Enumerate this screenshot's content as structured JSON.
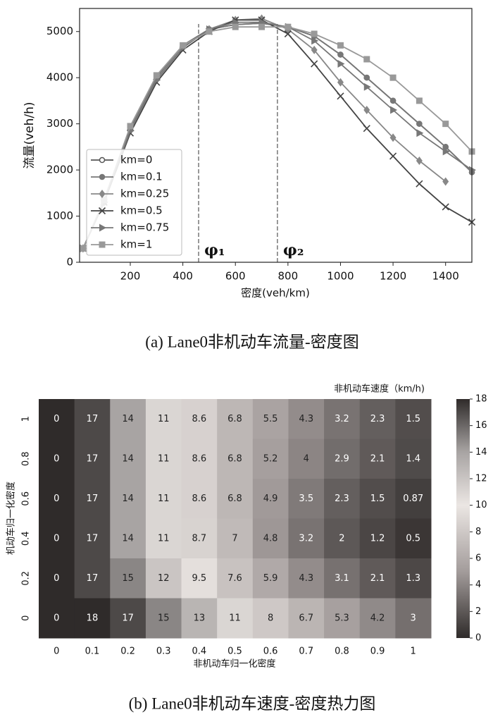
{
  "chart_data": [
    {
      "type": "line",
      "caption": "(a) Lane0非机动车流量-密度图",
      "xlabel": "密度(veh/km)",
      "ylabel": "流量(veh/h)",
      "x": [
        20,
        100,
        200,
        300,
        400,
        500,
        600,
        700,
        800,
        900,
        1000,
        1100,
        1200,
        1300,
        1400,
        1500
      ],
      "series": [
        {
          "name": "km=0",
          "color": "#555555",
          "marker": "circle-open",
          "values": [
            300,
            1300,
            2900,
            4000,
            4700,
            5050,
            5150,
            5180,
            5100,
            4900,
            4500,
            4000,
            3500,
            3000,
            2500,
            1950
          ]
        },
        {
          "name": "km=0.1",
          "color": "#777777",
          "marker": "circle",
          "values": [
            300,
            1300,
            2900,
            4000,
            4700,
            5050,
            5150,
            5180,
            5100,
            4900,
            4500,
            4000,
            3500,
            3000,
            2500,
            1950
          ]
        },
        {
          "name": "km=0.25",
          "color": "#888888",
          "marker": "diamond",
          "values": [
            300,
            1300,
            2850,
            3950,
            4650,
            5050,
            5250,
            5280,
            5050,
            4600,
            3900,
            3300,
            2700,
            2200,
            1750,
            null
          ]
        },
        {
          "name": "km=0.5",
          "color": "#444444",
          "marker": "x",
          "values": [
            300,
            1300,
            2800,
            3900,
            4600,
            5000,
            5250,
            5250,
            4950,
            4300,
            3600,
            2900,
            2300,
            1700,
            1200,
            870
          ]
        },
        {
          "name": "km=0.75",
          "color": "#777777",
          "marker": "triangle-right",
          "values": [
            300,
            1300,
            2850,
            3950,
            4650,
            5050,
            5200,
            5200,
            5100,
            4800,
            4300,
            3800,
            3300,
            2800,
            2400,
            2000
          ]
        },
        {
          "name": "km=1",
          "color": "#999999",
          "marker": "square",
          "values": [
            300,
            1350,
            2950,
            4050,
            4700,
            5000,
            5100,
            5100,
            5100,
            4950,
            4700,
            4400,
            4000,
            3500,
            3000,
            2400
          ]
        }
      ],
      "xlim": [
        7,
        1500
      ],
      "ylim": [
        0,
        5500
      ],
      "xticks": [
        200,
        400,
        600,
        800,
        1000,
        1200,
        1400
      ],
      "yticks": [
        0,
        1000,
        2000,
        3000,
        4000,
        5000
      ],
      "legend": "lower left",
      "annotations": [
        {
          "text": "φ₁",
          "x": 460
        },
        {
          "text": "φ₂",
          "x": 760
        }
      ]
    },
    {
      "type": "heatmap",
      "caption": "(b) Lane0非机动车速度-密度热力图",
      "title": "非机动车速度（km/h)",
      "xlabel": "非机动车归一化密度",
      "ylabel": "机动车归一化密度",
      "x_categories": [
        "0",
        "0.1",
        "0.2",
        "0.3",
        "0.4",
        "0.5",
        "0.6",
        "0.7",
        "0.8",
        "0.9",
        "1"
      ],
      "y_categories": [
        "1",
        "0.8",
        "0.6",
        "0.4",
        "0.2",
        "0"
      ],
      "z": [
        [
          0,
          17,
          14,
          11,
          8.6,
          6.8,
          5.5,
          4.3,
          3.2,
          2.3,
          1.5
        ],
        [
          0,
          17,
          14,
          11,
          8.6,
          6.8,
          5.2,
          4,
          2.9,
          2.1,
          1.4
        ],
        [
          0,
          17,
          14,
          11,
          8.6,
          6.8,
          4.9,
          3.5,
          2.3,
          1.5,
          0.87
        ],
        [
          0,
          17,
          14,
          11,
          8.7,
          7,
          4.8,
          3.2,
          2,
          1.2,
          0.5
        ],
        [
          0,
          17,
          15,
          12,
          9.5,
          7.6,
          5.9,
          4.3,
          3.1,
          2.1,
          1.3
        ],
        [
          0,
          18,
          17,
          15,
          13,
          11,
          8,
          6.7,
          5.3,
          4.2,
          3
        ]
      ],
      "cmap": [
        [
          0,
          "#2f2b2a"
        ],
        [
          5,
          "#a39c9b"
        ],
        [
          10,
          "#ebe6e3"
        ],
        [
          14,
          "#a8a4a3"
        ],
        [
          18,
          "#2f2b2a"
        ]
      ],
      "colorbar_lim": [
        0,
        18
      ],
      "colorbar_ticks": [
        0,
        2,
        4,
        6,
        8,
        10,
        12,
        14,
        16,
        18
      ]
    }
  ]
}
